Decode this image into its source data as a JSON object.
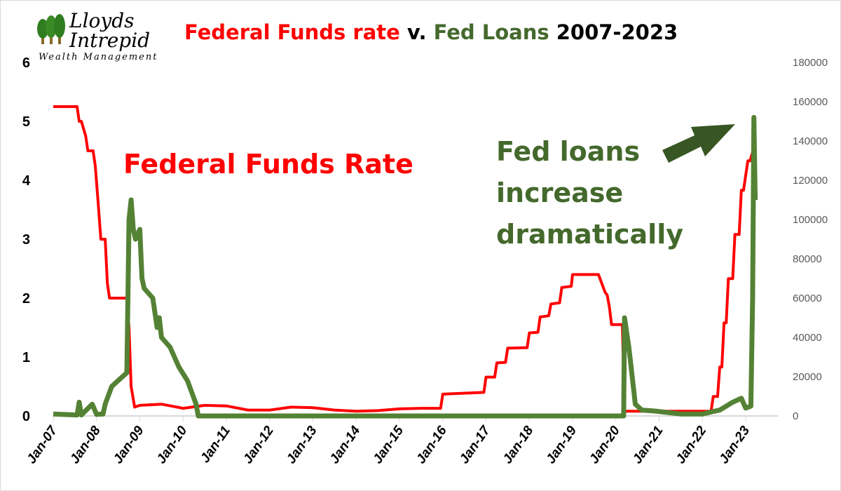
{
  "logo": {
    "line1": "Lloyds",
    "line2": "Intrepid",
    "line3": "Wealth Management"
  },
  "chart_data": {
    "type": "line",
    "title_parts": [
      {
        "text": "Federal Funds rate",
        "color": "#ff0000"
      },
      {
        "text": " v. ",
        "color": "#000000"
      },
      {
        "text": "Fed Loans",
        "color": "#44692c"
      },
      {
        "text": " 2007-2023",
        "color": "#000000"
      }
    ],
    "x_ticks": [
      "Jan-07",
      "Jan-08",
      "Jan-09",
      "Jan-10",
      "Jan-11",
      "Jan-12",
      "Jan-13",
      "Jan-14",
      "Jan-15",
      "Jan-16",
      "Jan-17",
      "Jan-18",
      "Jan-19",
      "Jan-20",
      "Jan-21",
      "Jan-22",
      "Jan-23"
    ],
    "xlim": [
      2007.0,
      2023.75
    ],
    "y_left": {
      "ticks": [
        "0",
        "1",
        "2",
        "3",
        "4",
        "5",
        "6"
      ],
      "ylim": [
        0,
        6
      ]
    },
    "y_right": {
      "ticks": [
        "0",
        "20000",
        "40000",
        "60000",
        "80000",
        "100000",
        "120000",
        "140000",
        "160000",
        "180000"
      ],
      "ylim": [
        0,
        180000
      ]
    },
    "grid": false,
    "series": [
      {
        "name": "Federal Funds Rate",
        "axis": "left",
        "color": "#ff0000",
        "x": [
          2007.0,
          2007.55,
          2007.6,
          2007.65,
          2007.75,
          2007.8,
          2007.92,
          2007.97,
          2008.05,
          2008.1,
          2008.2,
          2008.25,
          2008.3,
          2008.7,
          2008.75,
          2008.8,
          2008.88,
          2009.0,
          2009.5,
          2010.0,
          2010.5,
          2011.0,
          2011.5,
          2012.0,
          2012.5,
          2013.0,
          2013.5,
          2014.0,
          2014.5,
          2015.0,
          2015.5,
          2015.95,
          2016.0,
          2016.95,
          2017.0,
          2017.2,
          2017.25,
          2017.45,
          2017.5,
          2017.95,
          2018.0,
          2018.2,
          2018.25,
          2018.45,
          2018.5,
          2018.7,
          2018.75,
          2018.97,
          2019.0,
          2019.55,
          2019.6,
          2019.75,
          2019.8,
          2019.85,
          2019.9,
          2020.15,
          2020.2,
          2020.5,
          2021.0,
          2021.5,
          2022.0,
          2022.2,
          2022.25,
          2022.35,
          2022.4,
          2022.45,
          2022.5,
          2022.55,
          2022.6,
          2022.7,
          2022.75,
          2022.85,
          2022.9,
          2022.95,
          2023.05,
          2023.1,
          2023.2
        ],
        "values": [
          5.25,
          5.25,
          5.0,
          5.0,
          4.75,
          4.5,
          4.5,
          4.25,
          3.5,
          3.0,
          3.0,
          2.25,
          2.0,
          2.0,
          1.5,
          0.5,
          0.15,
          0.18,
          0.2,
          0.13,
          0.18,
          0.17,
          0.1,
          0.1,
          0.15,
          0.14,
          0.1,
          0.08,
          0.09,
          0.12,
          0.13,
          0.13,
          0.37,
          0.4,
          0.66,
          0.66,
          0.9,
          0.91,
          1.15,
          1.16,
          1.41,
          1.42,
          1.68,
          1.7,
          1.9,
          1.92,
          2.18,
          2.2,
          2.4,
          2.4,
          2.4,
          2.1,
          2.05,
          1.85,
          1.55,
          1.55,
          0.08,
          0.08,
          0.08,
          0.08,
          0.08,
          0.08,
          0.33,
          0.33,
          0.83,
          0.83,
          1.58,
          1.58,
          2.33,
          2.33,
          3.08,
          3.08,
          3.83,
          3.83,
          4.33,
          4.33,
          4.58
        ]
      },
      {
        "name": "Fed Loans",
        "axis": "right",
        "color": "#548235",
        "x": [
          2007.0,
          2007.55,
          2007.6,
          2007.65,
          2007.9,
          2008.0,
          2008.15,
          2008.2,
          2008.35,
          2008.5,
          2008.7,
          2008.75,
          2008.8,
          2008.85,
          2008.9,
          2009.0,
          2009.05,
          2009.1,
          2009.3,
          2009.4,
          2009.45,
          2009.5,
          2009.7,
          2009.9,
          2010.1,
          2010.3,
          2010.35,
          2011.0,
          2014.0,
          2017.0,
          2020.18,
          2020.2,
          2020.3,
          2020.45,
          2020.6,
          2020.9,
          2021.5,
          2022.0,
          2022.4,
          2022.7,
          2022.9,
          2023.0,
          2023.12,
          2023.16,
          2023.19,
          2023.22
        ],
        "values": [
          1000,
          500,
          7000,
          500,
          6000,
          800,
          1000,
          6000,
          15000,
          18000,
          22000,
          100000,
          110000,
          95000,
          90000,
          95000,
          70000,
          65000,
          60000,
          45000,
          50000,
          40000,
          35000,
          25000,
          18000,
          6000,
          0,
          0,
          0,
          0,
          0,
          50000,
          35000,
          6000,
          3000,
          2500,
          1000,
          1000,
          3000,
          7000,
          9000,
          4000,
          5000,
          60000,
          152000,
          110000
        ]
      }
    ],
    "annotations": [
      {
        "text": "Federal Funds Rate",
        "color": "#ff0000"
      },
      {
        "lines": [
          "Fed loans",
          "increase",
          "dramatically"
        ],
        "color": "#44692c"
      }
    ]
  }
}
